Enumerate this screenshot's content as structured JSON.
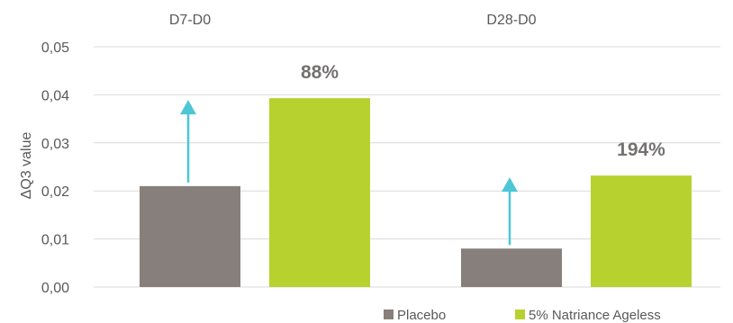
{
  "chart_data": {
    "type": "bar",
    "categories": [
      "D7-D0",
      "D28-D0"
    ],
    "series": [
      {
        "name": "Placebo",
        "values": [
          0.021,
          0.008
        ],
        "color": "#877f7b"
      },
      {
        "name": "5% Natriance Ageless",
        "values": [
          0.0393,
          0.0232
        ],
        "color": "#b7d22f"
      }
    ],
    "ylabel": "ΔQ3 value",
    "ylim": [
      0,
      0.05
    ],
    "yticks": [
      "0,00",
      "0,01",
      "0,02",
      "0,03",
      "0,04",
      "0,05"
    ],
    "annotations": [
      "88%",
      "194%"
    ],
    "arrow_color": "#4dc6d6",
    "grid": true,
    "legend_position": "bottom-right"
  }
}
